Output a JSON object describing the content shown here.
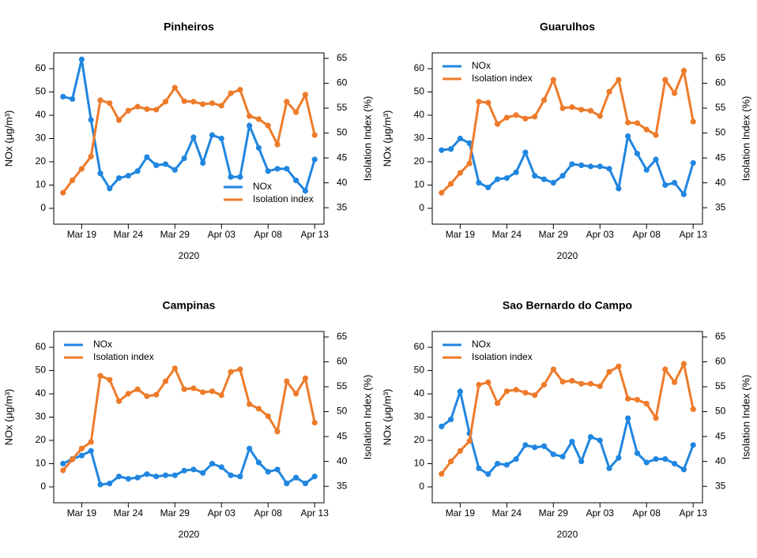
{
  "chart_data": [
    {
      "type": "line",
      "title": "Pinheiros",
      "xlabel": "2020",
      "ylabel": "NOx (μg/m³)",
      "y2label": "Isolation Index (%)",
      "legend": "bottom-right",
      "x": [
        "2020-03-17",
        "2020-03-18",
        "2020-03-19",
        "2020-03-20",
        "2020-03-21",
        "2020-03-22",
        "2020-03-23",
        "2020-03-24",
        "2020-03-25",
        "2020-03-26",
        "2020-03-27",
        "2020-03-28",
        "2020-03-29",
        "2020-03-30",
        "2020-03-31",
        "2020-04-01",
        "2020-04-02",
        "2020-04-03",
        "2020-04-04",
        "2020-04-05",
        "2020-04-06",
        "2020-04-07",
        "2020-04-08",
        "2020-04-09",
        "2020-04-10",
        "2020-04-11",
        "2020-04-12",
        "2020-04-13"
      ],
      "xlim": [
        "2020-03-16",
        "2020-04-14"
      ],
      "xticks": [
        {
          "value": "2020-03-19",
          "label": "Mar 19"
        },
        {
          "value": "2020-03-24",
          "label": "Mar 24"
        },
        {
          "value": "2020-03-29",
          "label": "Mar 29"
        },
        {
          "value": "2020-04-03",
          "label": "Apr 03"
        },
        {
          "value": "2020-04-08",
          "label": "Apr 08"
        },
        {
          "value": "2020-04-13",
          "label": "Apr 13"
        }
      ],
      "ylim": [
        -6.8,
        66.8
      ],
      "yticks": [
        0,
        10,
        20,
        30,
        40,
        50,
        60
      ],
      "y2lim": [
        31.7,
        66.1
      ],
      "y2ticks": [
        35,
        40,
        45,
        50,
        55,
        60,
        65
      ],
      "series": [
        {
          "name": "NOx",
          "color": "#2086e0",
          "values": [
            48,
            47,
            64,
            38,
            15,
            8.5,
            13,
            14,
            16,
            22,
            18.5,
            19,
            16.5,
            21.5,
            30.5,
            19.5,
            31.5,
            30,
            13.5,
            13.5,
            35.5,
            26,
            16,
            17,
            17,
            12,
            7.5,
            21
          ]
        },
        {
          "name": "Isolation index",
          "color": "#ee7b2a",
          "axis": "y2",
          "values": [
            38,
            40.5,
            42.8,
            45.3,
            56.6,
            56,
            52.6,
            54.5,
            55.3,
            54.8,
            54.7,
            56.3,
            59.1,
            56.4,
            56.3,
            55.8,
            56,
            55.5,
            58,
            58.7,
            53.4,
            52.8,
            51.5,
            47.7,
            56.3,
            54.2,
            57.7,
            49.6
          ]
        }
      ]
    },
    {
      "type": "line",
      "title": "Guarulhos",
      "xlabel": "2020",
      "ylabel": "NOx (μg/m³)",
      "y2label": "Isolation Index (%)",
      "legend": "top-left",
      "x": [
        "2020-03-17",
        "2020-03-18",
        "2020-03-19",
        "2020-03-20",
        "2020-03-21",
        "2020-03-22",
        "2020-03-23",
        "2020-03-24",
        "2020-03-25",
        "2020-03-26",
        "2020-03-27",
        "2020-03-28",
        "2020-03-29",
        "2020-03-30",
        "2020-03-31",
        "2020-04-01",
        "2020-04-02",
        "2020-04-03",
        "2020-04-04",
        "2020-04-05",
        "2020-04-06",
        "2020-04-07",
        "2020-04-08",
        "2020-04-09",
        "2020-04-10",
        "2020-04-11",
        "2020-04-12",
        "2020-04-13"
      ],
      "xlim": [
        "2020-03-16",
        "2020-04-14"
      ],
      "xticks": [
        {
          "value": "2020-03-19",
          "label": "Mar 19"
        },
        {
          "value": "2020-03-24",
          "label": "Mar 24"
        },
        {
          "value": "2020-03-29",
          "label": "Mar 29"
        },
        {
          "value": "2020-04-03",
          "label": "Apr 03"
        },
        {
          "value": "2020-04-08",
          "label": "Apr 08"
        },
        {
          "value": "2020-04-13",
          "label": "Apr 13"
        }
      ],
      "ylim": [
        -6.8,
        66.8
      ],
      "yticks": [
        0,
        10,
        20,
        30,
        40,
        50,
        60
      ],
      "y2lim": [
        31.7,
        66.1
      ],
      "y2ticks": [
        35,
        40,
        45,
        50,
        55,
        60,
        65
      ],
      "series": [
        {
          "name": "NOx",
          "color": "#2086e0",
          "values": [
            25,
            25.5,
            30,
            28,
            11,
            9,
            12.5,
            13,
            15.5,
            24,
            14,
            12.5,
            11,
            14,
            19,
            18.5,
            18,
            18,
            17,
            8.5,
            31,
            23.5,
            16.5,
            21,
            10,
            11,
            6,
            19.5
          ]
        },
        {
          "name": "Isolation index",
          "color": "#ee7b2a",
          "axis": "y2",
          "values": [
            38,
            39.8,
            42,
            43.9,
            56.3,
            56.1,
            51.8,
            53.1,
            53.6,
            52.9,
            53.3,
            56.6,
            60.7,
            55,
            55.2,
            54.7,
            54.5,
            53.4,
            58.3,
            60.7,
            52.1,
            52,
            50.7,
            49.6,
            60.7,
            58,
            62.5,
            52.3
          ]
        }
      ]
    },
    {
      "type": "line",
      "title": "Campinas",
      "xlabel": "2020",
      "ylabel": "NOx (μg/m³)",
      "y2label": "Isolation Index (%)",
      "legend": "top-left",
      "x": [
        "2020-03-17",
        "2020-03-18",
        "2020-03-19",
        "2020-03-20",
        "2020-03-21",
        "2020-03-22",
        "2020-03-23",
        "2020-03-24",
        "2020-03-25",
        "2020-03-26",
        "2020-03-27",
        "2020-03-28",
        "2020-03-29",
        "2020-03-30",
        "2020-03-31",
        "2020-04-01",
        "2020-04-02",
        "2020-04-03",
        "2020-04-04",
        "2020-04-05",
        "2020-04-06",
        "2020-04-07",
        "2020-04-08",
        "2020-04-09",
        "2020-04-10",
        "2020-04-11",
        "2020-04-12",
        "2020-04-13"
      ],
      "xlim": [
        "2020-03-16",
        "2020-04-14"
      ],
      "xticks": [
        {
          "value": "2020-03-19",
          "label": "Mar 19"
        },
        {
          "value": "2020-03-24",
          "label": "Mar 24"
        },
        {
          "value": "2020-03-29",
          "label": "Mar 29"
        },
        {
          "value": "2020-04-03",
          "label": "Apr 03"
        },
        {
          "value": "2020-04-08",
          "label": "Apr 08"
        },
        {
          "value": "2020-04-13",
          "label": "Apr 13"
        }
      ],
      "ylim": [
        -6.8,
        66.8
      ],
      "yticks": [
        0,
        10,
        20,
        30,
        40,
        50,
        60
      ],
      "y2lim": [
        31.7,
        66.1
      ],
      "y2ticks": [
        35,
        40,
        45,
        50,
        55,
        60,
        65
      ],
      "series": [
        {
          "name": "NOx",
          "color": "#2086e0",
          "values": [
            10,
            12,
            13.5,
            15.5,
            1,
            1.5,
            4.5,
            3.5,
            4,
            5.5,
            4.5,
            5,
            5,
            7,
            7.5,
            6,
            10,
            8.5,
            5,
            4.5,
            16.5,
            10.5,
            6.5,
            7.5,
            1.5,
            4,
            1.5,
            4.5
          ]
        },
        {
          "name": "Isolation index",
          "color": "#ee7b2a",
          "axis": "y2",
          "values": [
            38.2,
            40.4,
            42.6,
            43.9,
            57.2,
            56.4,
            52.1,
            53.6,
            54.5,
            53.1,
            53.4,
            56.1,
            58.7,
            54.5,
            54.7,
            53.9,
            54.1,
            53.3,
            58,
            58.5,
            51.5,
            50.6,
            49.1,
            46,
            56.1,
            53.6,
            56.7,
            47.8
          ]
        }
      ]
    },
    {
      "type": "line",
      "title": "Sao Bernardo do Campo",
      "xlabel": "2020",
      "ylabel": "NOx (μg/m³)",
      "y2label": "Isolation Index (%)",
      "legend": "top-left",
      "x": [
        "2020-03-17",
        "2020-03-18",
        "2020-03-19",
        "2020-03-20",
        "2020-03-21",
        "2020-03-22",
        "2020-03-23",
        "2020-03-24",
        "2020-03-25",
        "2020-03-26",
        "2020-03-27",
        "2020-03-28",
        "2020-03-29",
        "2020-03-30",
        "2020-03-31",
        "2020-04-01",
        "2020-04-02",
        "2020-04-03",
        "2020-04-04",
        "2020-04-05",
        "2020-04-06",
        "2020-04-07",
        "2020-04-08",
        "2020-04-09",
        "2020-04-10",
        "2020-04-11",
        "2020-04-12",
        "2020-04-13"
      ],
      "xlim": [
        "2020-03-16",
        "2020-04-14"
      ],
      "xticks": [
        {
          "value": "2020-03-19",
          "label": "Mar 19"
        },
        {
          "value": "2020-03-24",
          "label": "Mar 24"
        },
        {
          "value": "2020-03-29",
          "label": "Mar 29"
        },
        {
          "value": "2020-04-03",
          "label": "Apr 03"
        },
        {
          "value": "2020-04-08",
          "label": "Apr 08"
        },
        {
          "value": "2020-04-13",
          "label": "Apr 13"
        }
      ],
      "ylim": [
        -6.8,
        66.8
      ],
      "yticks": [
        0,
        10,
        20,
        30,
        40,
        50,
        60
      ],
      "y2lim": [
        31.7,
        66.1
      ],
      "y2ticks": [
        35,
        40,
        45,
        50,
        55,
        60,
        65
      ],
      "series": [
        {
          "name": "NOx",
          "color": "#2086e0",
          "values": [
            26,
            29,
            41,
            23,
            8,
            5.5,
            10,
            9.5,
            12,
            18,
            17,
            17.5,
            14,
            13,
            19.5,
            11,
            21.5,
            20,
            8,
            12.5,
            29.5,
            14.5,
            10.5,
            12,
            12,
            10,
            7.5,
            18
          ]
        },
        {
          "name": "Isolation index",
          "color": "#ee7b2a",
          "axis": "y2",
          "values": [
            37.5,
            40,
            42.1,
            44.1,
            55.4,
            55.9,
            51.7,
            54.1,
            54.4,
            53.8,
            53.3,
            55.4,
            58.5,
            56,
            56.2,
            55.6,
            55.6,
            55.1,
            58,
            59.1,
            52.6,
            52.4,
            51.6,
            48.7,
            58.5,
            55.9,
            59.6,
            50.5
          ]
        }
      ]
    }
  ]
}
